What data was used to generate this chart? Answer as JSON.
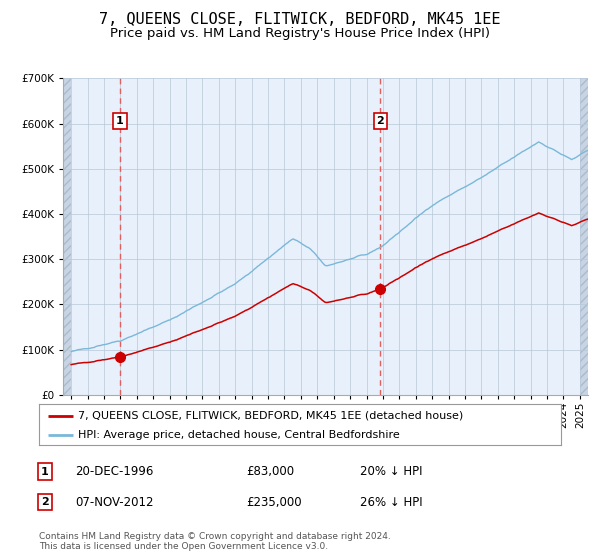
{
  "title": "7, QUEENS CLOSE, FLITWICK, BEDFORD, MK45 1EE",
  "subtitle": "Price paid vs. HM Land Registry's House Price Index (HPI)",
  "legend_line1": "7, QUEENS CLOSE, FLITWICK, BEDFORD, MK45 1EE (detached house)",
  "legend_line2": "HPI: Average price, detached house, Central Bedfordshire",
  "annotation1_date": "20-DEC-1996",
  "annotation1_price": "£83,000",
  "annotation1_hpi": "20% ↓ HPI",
  "annotation2_date": "07-NOV-2012",
  "annotation2_price": "£235,000",
  "annotation2_hpi": "26% ↓ HPI",
  "footnote": "Contains HM Land Registry data © Crown copyright and database right 2024.\nThis data is licensed under the Open Government Licence v3.0.",
  "sale1_year": 1996.97,
  "sale1_price": 83000,
  "sale2_year": 2012.85,
  "sale2_price": 235000,
  "hpi_color": "#7ab8d9",
  "property_color": "#cc0000",
  "dashed_color": "#e06060",
  "plot_bg": "#e8f0fb",
  "ylim": [
    0,
    700000
  ],
  "xlim_start": 1993.5,
  "xlim_end": 2025.5,
  "title_fontsize": 11,
  "subtitle_fontsize": 9.5,
  "axis_fontsize": 7.5,
  "legend_fontsize": 8,
  "annot_fontsize": 8.5
}
